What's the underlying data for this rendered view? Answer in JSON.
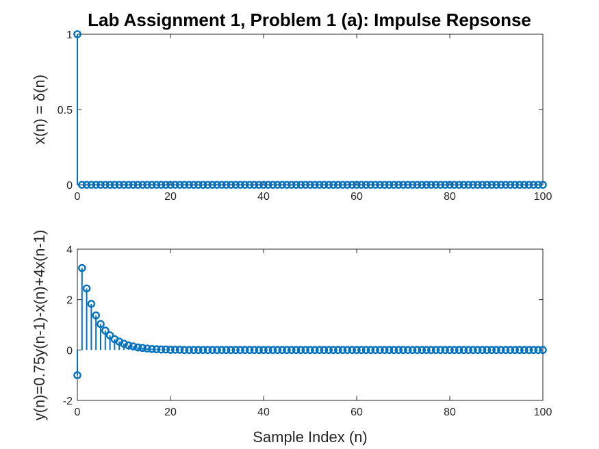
{
  "figure": {
    "title": "Lab Assignment 1, Problem 1 (a): Impulse Repsonse"
  },
  "colors": {
    "stem": "#0072BD",
    "axes": "#262626",
    "background": "#ffffff"
  },
  "chart_data": [
    {
      "type": "stem",
      "title": "Lab Assignment 1, Problem 1 (a): Impulse Repsonse",
      "xlabel": "",
      "ylabel": "x(n) = δ(n)",
      "xlim": [
        0,
        100
      ],
      "ylim": [
        0,
        1
      ],
      "xticks": [
        0,
        20,
        40,
        60,
        80,
        100
      ],
      "yticks": [
        0,
        0.5,
        1
      ],
      "xtick_labels": [
        "0",
        "20",
        "40",
        "60",
        "80",
        "100"
      ],
      "ytick_labels": [
        "0",
        "0.5",
        "1"
      ],
      "grid": false,
      "marker": "open-circle",
      "x_range": [
        0,
        100
      ],
      "values": [
        1,
        0,
        0,
        0,
        0,
        0,
        0,
        0,
        0,
        0,
        0,
        0,
        0,
        0,
        0,
        0,
        0,
        0,
        0,
        0,
        0,
        0,
        0,
        0,
        0,
        0,
        0,
        0,
        0,
        0,
        0,
        0,
        0,
        0,
        0,
        0,
        0,
        0,
        0,
        0,
        0,
        0,
        0,
        0,
        0,
        0,
        0,
        0,
        0,
        0,
        0,
        0,
        0,
        0,
        0,
        0,
        0,
        0,
        0,
        0,
        0,
        0,
        0,
        0,
        0,
        0,
        0,
        0,
        0,
        0,
        0,
        0,
        0,
        0,
        0,
        0,
        0,
        0,
        0,
        0,
        0,
        0,
        0,
        0,
        0,
        0,
        0,
        0,
        0,
        0,
        0,
        0,
        0,
        0,
        0,
        0,
        0,
        0,
        0,
        0,
        0
      ]
    },
    {
      "type": "stem",
      "title": "",
      "xlabel": "Sample Index (n)",
      "ylabel": "y(n)=0.75y(n-1)-x(n)+4x(n-1)",
      "xlim": [
        0,
        100
      ],
      "ylim": [
        -2,
        4
      ],
      "xticks": [
        0,
        20,
        40,
        60,
        80,
        100
      ],
      "yticks": [
        -2,
        0,
        2,
        4
      ],
      "xtick_labels": [
        "0",
        "20",
        "40",
        "60",
        "80",
        "100"
      ],
      "ytick_labels": [
        "-2",
        "0",
        "2",
        "4"
      ],
      "grid": false,
      "marker": "open-circle",
      "x_range": [
        0,
        100
      ],
      "values": [
        -1,
        3.25,
        2.44,
        1.83,
        1.37,
        1.03,
        0.77,
        0.58,
        0.43,
        0.33,
        0.25,
        0.18,
        0.14,
        0.1,
        0.08,
        0.06,
        0.04,
        0.03,
        0.02,
        0.02,
        0.01,
        0.01,
        0.01,
        0,
        0,
        0,
        0,
        0,
        0,
        0,
        0,
        0,
        0,
        0,
        0,
        0,
        0,
        0,
        0,
        0,
        0,
        0,
        0,
        0,
        0,
        0,
        0,
        0,
        0,
        0,
        0,
        0,
        0,
        0,
        0,
        0,
        0,
        0,
        0,
        0,
        0,
        0,
        0,
        0,
        0,
        0,
        0,
        0,
        0,
        0,
        0,
        0,
        0,
        0,
        0,
        0,
        0,
        0,
        0,
        0,
        0,
        0,
        0,
        0,
        0,
        0,
        0,
        0,
        0,
        0,
        0,
        0,
        0,
        0,
        0,
        0,
        0,
        0,
        0,
        0,
        0
      ]
    }
  ]
}
